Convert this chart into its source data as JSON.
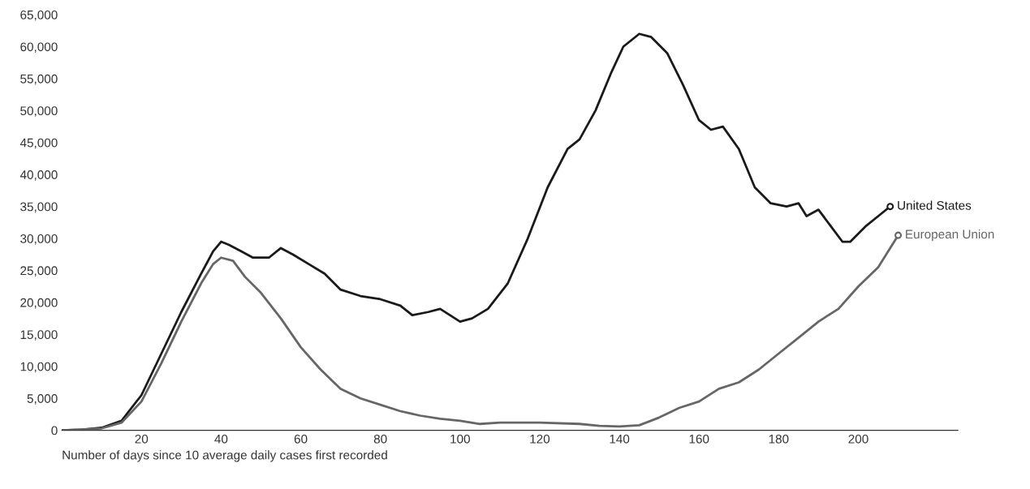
{
  "chart_data": {
    "type": "line",
    "xlabel": "Number of days since 10 average daily cases first recorded",
    "xlim": [
      0,
      225
    ],
    "xticks": [
      20,
      40,
      60,
      80,
      100,
      120,
      140,
      160,
      180,
      200
    ],
    "ylim": [
      0,
      65000
    ],
    "yticks": [
      {
        "value": 0,
        "label": "0"
      },
      {
        "value": 5000,
        "label": "5,000"
      },
      {
        "value": 10000,
        "label": "10,000"
      },
      {
        "value": 15000,
        "label": "15,000"
      },
      {
        "value": 20000,
        "label": "20,000"
      },
      {
        "value": 25000,
        "label": "25,000"
      },
      {
        "value": 30000,
        "label": "30,000"
      },
      {
        "value": 35000,
        "label": "35,000"
      },
      {
        "value": 40000,
        "label": "40,000"
      },
      {
        "value": 45000,
        "label": "45,000"
      },
      {
        "value": 50000,
        "label": "50,000"
      },
      {
        "value": 55000,
        "label": "55,000"
      },
      {
        "value": 60000,
        "label": "60,000"
      },
      {
        "value": 65000,
        "label": "65,000"
      }
    ],
    "grid": false,
    "legend": false,
    "marker": "none",
    "line_style": "solid",
    "series": [
      {
        "color": "#1a1a1a",
        "x": [
          0,
          5,
          10,
          15,
          20,
          25,
          30,
          35,
          38,
          40,
          42,
          45,
          48,
          52,
          55,
          58,
          62,
          66,
          70,
          75,
          80,
          85,
          88,
          92,
          95,
          100,
          103,
          107,
          112,
          117,
          122,
          127,
          130,
          134,
          138,
          141,
          145,
          148,
          152,
          156,
          160,
          163,
          166,
          170,
          174,
          178,
          182,
          185,
          187,
          190,
          193,
          196,
          198,
          202,
          205,
          208
        ],
        "values": [
          0,
          100,
          400,
          1500,
          5500,
          12000,
          18500,
          24500,
          28000,
          29500,
          29000,
          28000,
          27000,
          27000,
          28500,
          27500,
          26000,
          24500,
          22000,
          21000,
          20500,
          19500,
          18000,
          18500,
          19000,
          17000,
          17500,
          19000,
          23000,
          30000,
          38000,
          44000,
          45500,
          50000,
          56000,
          60000,
          62000,
          61500,
          59000,
          54000,
          48500,
          47000,
          47500,
          44000,
          38000,
          35500,
          35000,
          35500,
          33500,
          34500,
          32000,
          29500,
          29500,
          32000,
          33500,
          35000
        ]
      },
      {
        "color": "#666666",
        "x": [
          0,
          10,
          15,
          20,
          25,
          30,
          35,
          38,
          40,
          43,
          46,
          50,
          55,
          60,
          65,
          70,
          75,
          80,
          85,
          90,
          95,
          100,
          105,
          110,
          120,
          130,
          135,
          140,
          145,
          150,
          155,
          160,
          165,
          170,
          175,
          180,
          185,
          190,
          195,
          200,
          205,
          210
        ],
        "values": [
          0,
          300,
          1200,
          4500,
          10500,
          17000,
          23000,
          26000,
          27000,
          26500,
          24000,
          21500,
          17500,
          13000,
          9500,
          6500,
          5000,
          4000,
          3000,
          2300,
          1800,
          1500,
          1000,
          1200,
          1200,
          1000,
          700,
          600,
          800,
          2000,
          3500,
          4500,
          6500,
          7500,
          9500,
          12000,
          14500,
          17000,
          19000,
          22500,
          25500,
          30500
        ]
      }
    ],
    "annotations": [
      {
        "text": "United States",
        "x": 208,
        "y": 35000
      },
      {
        "text": "European Union",
        "x": 210,
        "y": 30500
      }
    ]
  }
}
